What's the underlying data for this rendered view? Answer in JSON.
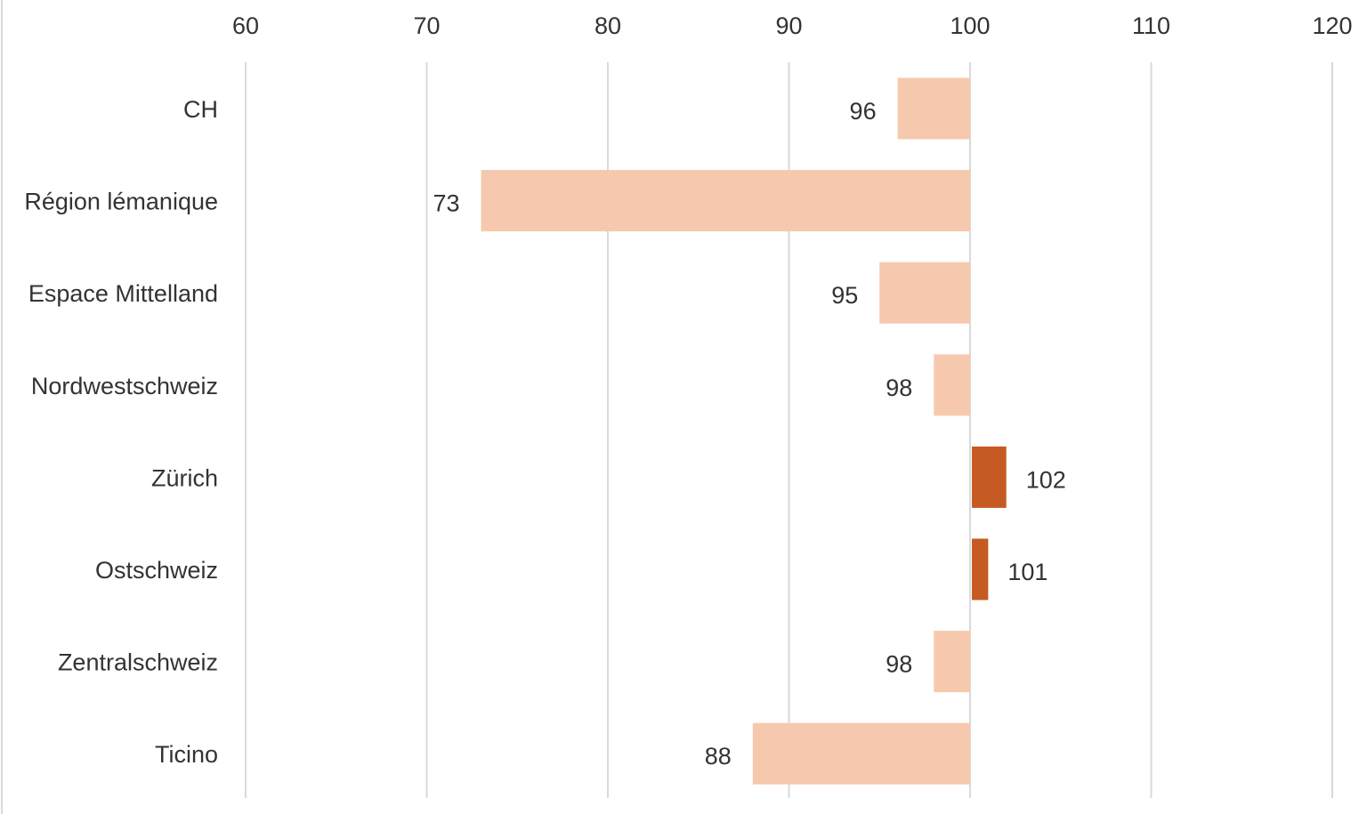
{
  "chart_data": {
    "type": "bar",
    "orientation": "horizontal",
    "baseline": 100,
    "xlim": [
      60,
      120
    ],
    "x_ticks": [
      60,
      70,
      80,
      90,
      100,
      110,
      120
    ],
    "axis_position": "top",
    "grid": true,
    "categories": [
      "CH",
      "Région lémanique",
      "Espace Mittelland",
      "Nordwestschweiz",
      "Zürich",
      "Ostschweiz",
      "Zentralschweiz",
      "Ticino"
    ],
    "values": [
      96,
      73,
      95,
      98,
      102,
      101,
      98,
      88
    ],
    "value_labels": [
      "96",
      "73",
      "95",
      "98",
      "102",
      "101",
      "98",
      "88"
    ],
    "colors": {
      "below_baseline": "#f6c9ae",
      "above_baseline": "#c55a22",
      "grid": "#d9d9d9",
      "text": "#333333"
    }
  }
}
